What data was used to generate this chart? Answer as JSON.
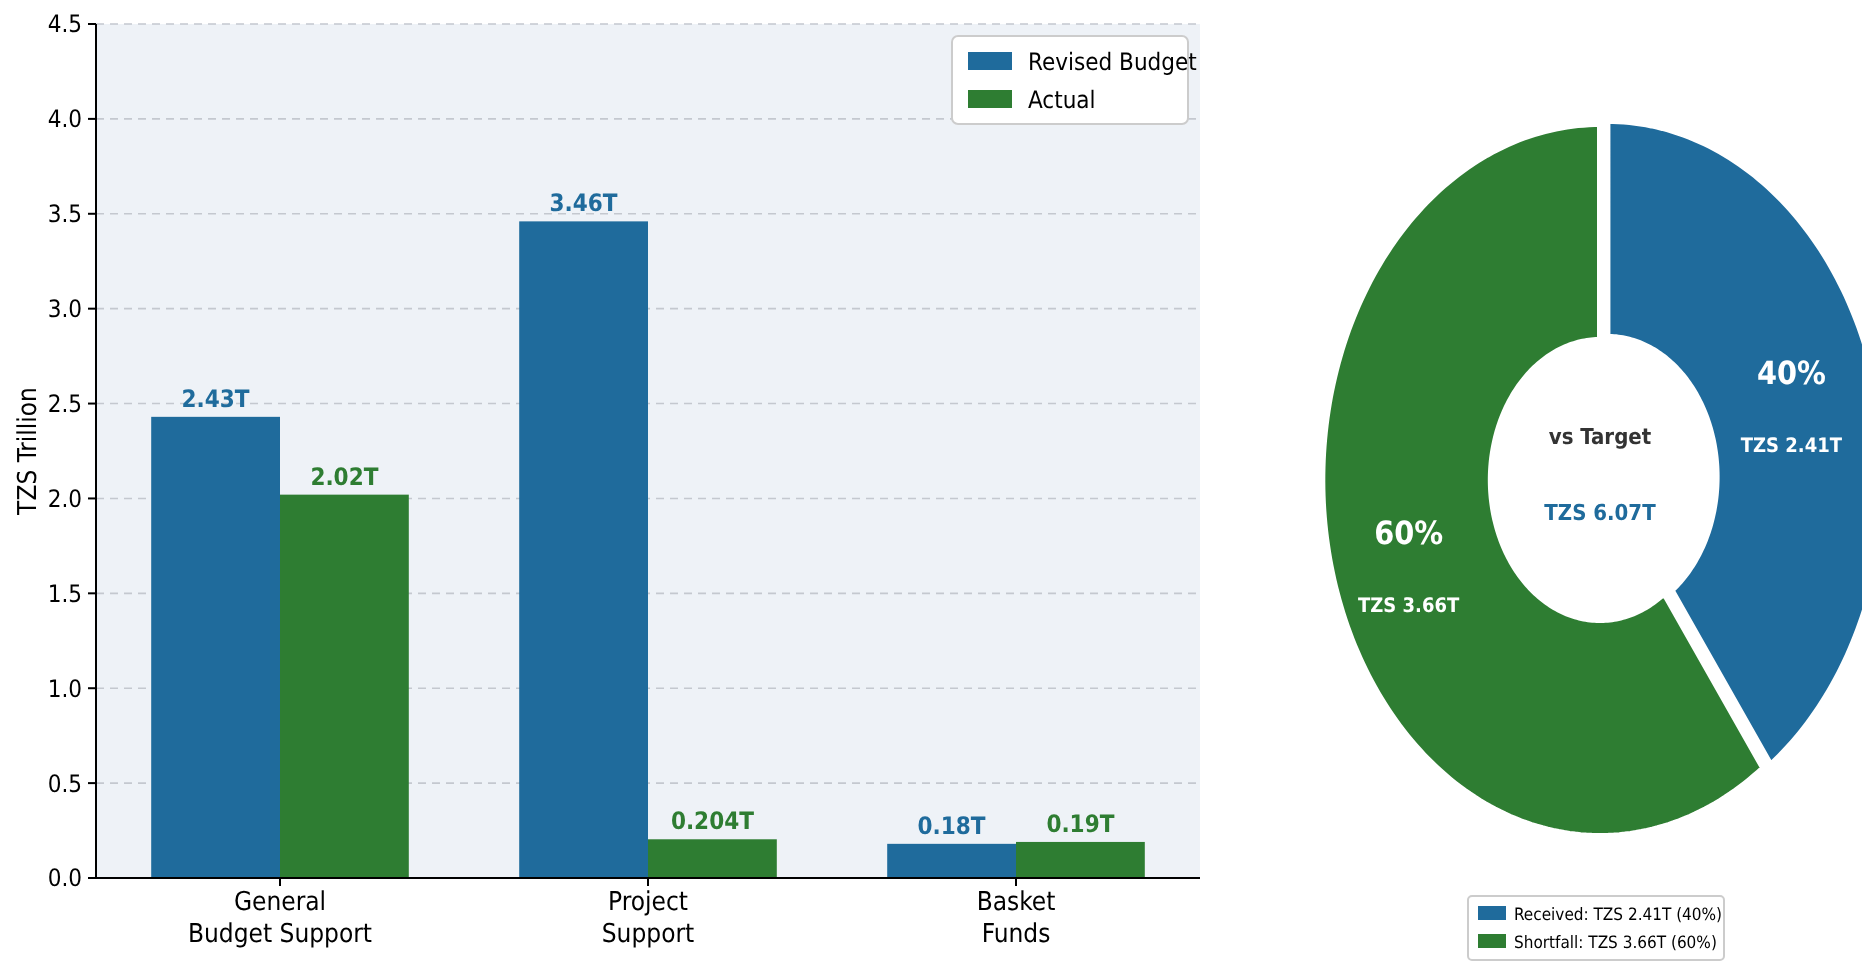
{
  "chart_data": [
    {
      "type": "bar",
      "categories": [
        "General Budget Support",
        "Project Support",
        "Basket Funds"
      ],
      "ylabel": "TZS Trillion",
      "ylim": [
        0,
        4.5
      ],
      "yticks": [
        {
          "value": 0,
          "label": "0.0"
        },
        {
          "value": 0.5,
          "label": "0.5"
        },
        {
          "value": 1,
          "label": "1.0"
        },
        {
          "value": 1.5,
          "label": "1.5"
        },
        {
          "value": 2,
          "label": "2.0"
        },
        {
          "value": 2.5,
          "label": "2.5"
        },
        {
          "value": 3,
          "label": "3.0"
        },
        {
          "value": 3.5,
          "label": "3.5"
        },
        {
          "value": 4,
          "label": "4.0"
        },
        {
          "value": 4.5,
          "label": "4.5"
        }
      ],
      "grid": "y",
      "legend": "top right",
      "series": [
        {
          "name": "Revised Budget",
          "color": "#1f6b9c",
          "values": [
            2.43,
            3.46,
            0.18
          ],
          "value_labels": [
            "2.43T",
            "3.46T",
            "0.18T"
          ]
        },
        {
          "name": "Actual",
          "color": "#2e7d32",
          "values": [
            2.02,
            0.204,
            0.19
          ],
          "value_labels": [
            "2.02T",
            "0.204T",
            "0.19T"
          ]
        }
      ]
    },
    {
      "type": "donut",
      "categories": [
        "Received: TZS 2.41T (40%)",
        "Shortfall: TZS 3.66T (60%)"
      ],
      "values": [
        40,
        60
      ],
      "colors": [
        "#1f6b9c",
        "#2e7d32"
      ],
      "value_labels": [
        "40%",
        "60%"
      ],
      "legend": "bottom",
      "annotations": [
        {
          "text": "TZS 2.41T",
          "x": "Received: TZS 2.41T (40%)"
        },
        {
          "text": "TZS 3.66T",
          "x": "Shortfall: TZS 3.66T (60%)"
        },
        "vs Target",
        "TZS 6.07T"
      ]
    }
  ]
}
